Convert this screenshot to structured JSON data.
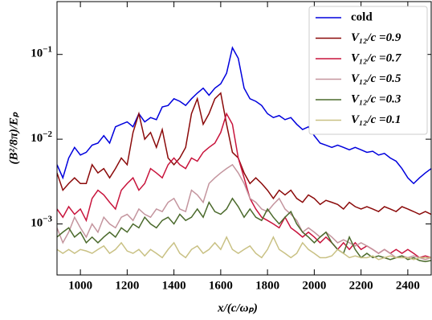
{
  "chart_data": {
    "type": "line",
    "yscale": "log",
    "grid": false,
    "legend": "upper right",
    "xlabel": "x/(c/ωₚ)",
    "ylabel": "(B²/8π)/Eₚ",
    "xlim": [
      900,
      2500
    ],
    "ylim": [
      0.00025,
      0.42
    ],
    "xticks": [
      1000,
      1200,
      1400,
      1600,
      1800,
      2000,
      2200,
      2400
    ],
    "yticks": [
      {
        "value": 0.1,
        "label": "10−1"
      },
      {
        "value": 0.01,
        "label": "10−2"
      },
      {
        "value": 0.001,
        "label": "10−3"
      }
    ],
    "x": [
      900,
      925,
      950,
      975,
      1000,
      1025,
      1050,
      1075,
      1100,
      1125,
      1150,
      1175,
      1200,
      1225,
      1250,
      1275,
      1300,
      1325,
      1350,
      1375,
      1400,
      1425,
      1450,
      1475,
      1500,
      1525,
      1550,
      1575,
      1600,
      1625,
      1650,
      1675,
      1700,
      1725,
      1750,
      1775,
      1800,
      1825,
      1850,
      1875,
      1900,
      1925,
      1950,
      1975,
      2000,
      2025,
      2050,
      2075,
      2100,
      2125,
      2150,
      2175,
      2200,
      2225,
      2250,
      2275,
      2300,
      2325,
      2350,
      2375,
      2400,
      2425,
      2450,
      2475,
      2500
    ],
    "series": [
      {
        "name": "cold",
        "color": "#0000dd",
        "values": [
          0.005,
          0.0035,
          0.006,
          0.008,
          0.0065,
          0.007,
          0.0085,
          0.009,
          0.011,
          0.009,
          0.014,
          0.015,
          0.016,
          0.014,
          0.02,
          0.016,
          0.018,
          0.017,
          0.024,
          0.025,
          0.03,
          0.028,
          0.025,
          0.03,
          0.035,
          0.04,
          0.033,
          0.04,
          0.045,
          0.06,
          0.12,
          0.09,
          0.04,
          0.03,
          0.028,
          0.025,
          0.02,
          0.018,
          0.019,
          0.017,
          0.018,
          0.015,
          0.013,
          0.014,
          0.011,
          0.009,
          0.0085,
          0.008,
          0.0085,
          0.008,
          0.0075,
          0.008,
          0.0075,
          0.007,
          0.0072,
          0.0065,
          0.0068,
          0.006,
          0.0055,
          0.0045,
          0.0035,
          0.003,
          0.0035,
          0.004,
          0.0045
        ]
      },
      {
        "name": "V₁₂/c =0.9",
        "color": "#8b0a0a",
        "values": [
          0.004,
          0.0025,
          0.003,
          0.0035,
          0.003,
          0.003,
          0.005,
          0.004,
          0.0045,
          0.0035,
          0.0045,
          0.006,
          0.005,
          0.012,
          0.02,
          0.01,
          0.012,
          0.008,
          0.013,
          0.006,
          0.005,
          0.006,
          0.008,
          0.02,
          0.03,
          0.015,
          0.02,
          0.03,
          0.035,
          0.015,
          0.007,
          0.006,
          0.004,
          0.003,
          0.0035,
          0.003,
          0.0025,
          0.002,
          0.0025,
          0.0022,
          0.0025,
          0.002,
          0.0018,
          0.0022,
          0.002,
          0.0017,
          0.0019,
          0.0018,
          0.0017,
          0.0015,
          0.0018,
          0.0016,
          0.0015,
          0.0016,
          0.0015,
          0.0014,
          0.0016,
          0.0015,
          0.0014,
          0.0016,
          0.0015,
          0.0014,
          0.0013,
          0.0014,
          0.0013
        ]
      },
      {
        "name": "V₁₂/c =0.7",
        "color": "#c8143c",
        "values": [
          0.0015,
          0.0012,
          0.0016,
          0.0013,
          0.0015,
          0.0011,
          0.002,
          0.0025,
          0.0022,
          0.0018,
          0.0015,
          0.0025,
          0.003,
          0.0035,
          0.0025,
          0.003,
          0.0045,
          0.004,
          0.0035,
          0.005,
          0.006,
          0.005,
          0.0045,
          0.006,
          0.0055,
          0.007,
          0.008,
          0.009,
          0.012,
          0.02,
          0.015,
          0.006,
          0.0035,
          0.002,
          0.0015,
          0.0012,
          0.0011,
          0.001,
          0.0009,
          0.0012,
          0.0009,
          0.0008,
          0.0007,
          0.0008,
          0.0007,
          0.0006,
          0.0007,
          0.0006,
          0.0005,
          0.0006,
          0.0005,
          0.0006,
          0.0005,
          0.00055,
          0.0005,
          0.00045,
          0.0005,
          0.00045,
          0.0005,
          0.00045,
          0.0005,
          0.00045,
          0.0004,
          0.00042,
          0.0004
        ]
      },
      {
        "name": "V₁₂/c =0.5",
        "color": "#c4959e",
        "values": [
          0.0009,
          0.0006,
          0.0008,
          0.0012,
          0.0009,
          0.0007,
          0.001,
          0.0008,
          0.0012,
          0.001,
          0.0009,
          0.0012,
          0.0013,
          0.0011,
          0.0015,
          0.0013,
          0.0012,
          0.0015,
          0.0014,
          0.0018,
          0.002,
          0.0015,
          0.0014,
          0.0025,
          0.0022,
          0.0018,
          0.003,
          0.0035,
          0.004,
          0.0045,
          0.005,
          0.004,
          0.003,
          0.002,
          0.0018,
          0.0015,
          0.0014,
          0.0017,
          0.002,
          0.0015,
          0.0013,
          0.0011,
          0.0008,
          0.0009,
          0.0008,
          0.0007,
          0.0008,
          0.0007,
          0.0006,
          0.00065,
          0.0006,
          0.00055,
          0.0006,
          0.00055,
          0.0005,
          0.00045,
          0.0005,
          0.00045,
          0.0004,
          0.00042,
          0.0004,
          0.00042,
          0.0004,
          0.00038,
          0.0004
        ]
      },
      {
        "name": "V₁₂/c =0.3",
        "color": "#4b6a2c",
        "values": [
          0.0007,
          0.0008,
          0.0009,
          0.0007,
          0.0008,
          0.0006,
          0.0007,
          0.0006,
          0.0007,
          0.0008,
          0.0007,
          0.0009,
          0.0008,
          0.001,
          0.0009,
          0.0012,
          0.001,
          0.0009,
          0.0011,
          0.0012,
          0.001,
          0.0013,
          0.0011,
          0.0012,
          0.0015,
          0.0012,
          0.0018,
          0.0014,
          0.0013,
          0.0015,
          0.002,
          0.0016,
          0.0012,
          0.0015,
          0.0012,
          0.0011,
          0.0015,
          0.0012,
          0.001,
          0.0012,
          0.0014,
          0.001,
          0.0008,
          0.0007,
          0.0006,
          0.0007,
          0.0008,
          0.0006,
          0.0005,
          0.00045,
          0.0007,
          0.0005,
          0.0004,
          0.00045,
          0.0004,
          0.00042,
          0.0004,
          0.00038,
          0.0004,
          0.00042,
          0.00038,
          0.0004,
          0.00037,
          0.00036,
          0.00037
        ]
      },
      {
        "name": "V₁₂/c =0.1",
        "color": "#c9c184",
        "values": [
          0.0005,
          0.00045,
          0.0005,
          0.00045,
          0.0005,
          0.00048,
          0.00045,
          0.0005,
          0.00055,
          0.00045,
          0.0005,
          0.0006,
          0.00048,
          0.00045,
          0.0005,
          0.00042,
          0.0005,
          0.00045,
          0.0004,
          0.0005,
          0.0006,
          0.00045,
          0.0004,
          0.0005,
          0.00055,
          0.00045,
          0.0005,
          0.0006,
          0.0005,
          0.0007,
          0.0005,
          0.00045,
          0.0005,
          0.00055,
          0.00045,
          0.0004,
          0.0005,
          0.0007,
          0.0005,
          0.00045,
          0.0004,
          0.00045,
          0.0006,
          0.0005,
          0.00045,
          0.0004,
          0.0004,
          0.00042,
          0.0005,
          0.00045,
          0.0004,
          0.00042,
          0.0004,
          0.0004,
          0.00042,
          0.00038,
          0.0004,
          0.00042,
          0.0004,
          0.0004,
          0.0004,
          0.00038,
          0.0004,
          0.0004,
          0.0004
        ]
      }
    ]
  }
}
